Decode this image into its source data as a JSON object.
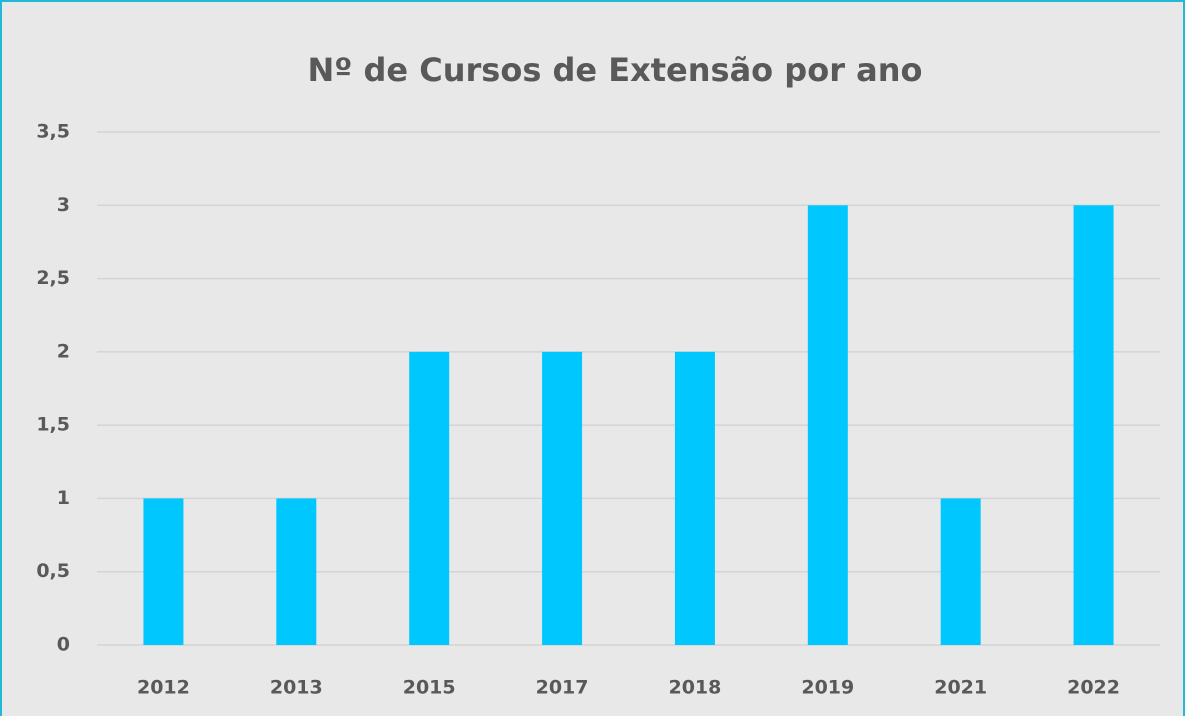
{
  "chart_data": {
    "type": "bar",
    "title": "Nº de Cursos de Extensão por ano",
    "categories": [
      "2012",
      "2013",
      "2015",
      "2017",
      "2018",
      "2019",
      "2021",
      "2022"
    ],
    "values": [
      1,
      1,
      2,
      2,
      2,
      3,
      1,
      3
    ],
    "color": "#00c8ff",
    "ylim": [
      0,
      3.5
    ],
    "yticks": [
      0,
      {
        "value": 0.5,
        "label": "0,5"
      },
      1,
      {
        "value": 1.5,
        "label": "1,5"
      },
      2,
      {
        "value": 2.5,
        "label": "2,5"
      },
      3,
      {
        "value": 3.5,
        "label": "3,5"
      }
    ],
    "grid": true
  }
}
